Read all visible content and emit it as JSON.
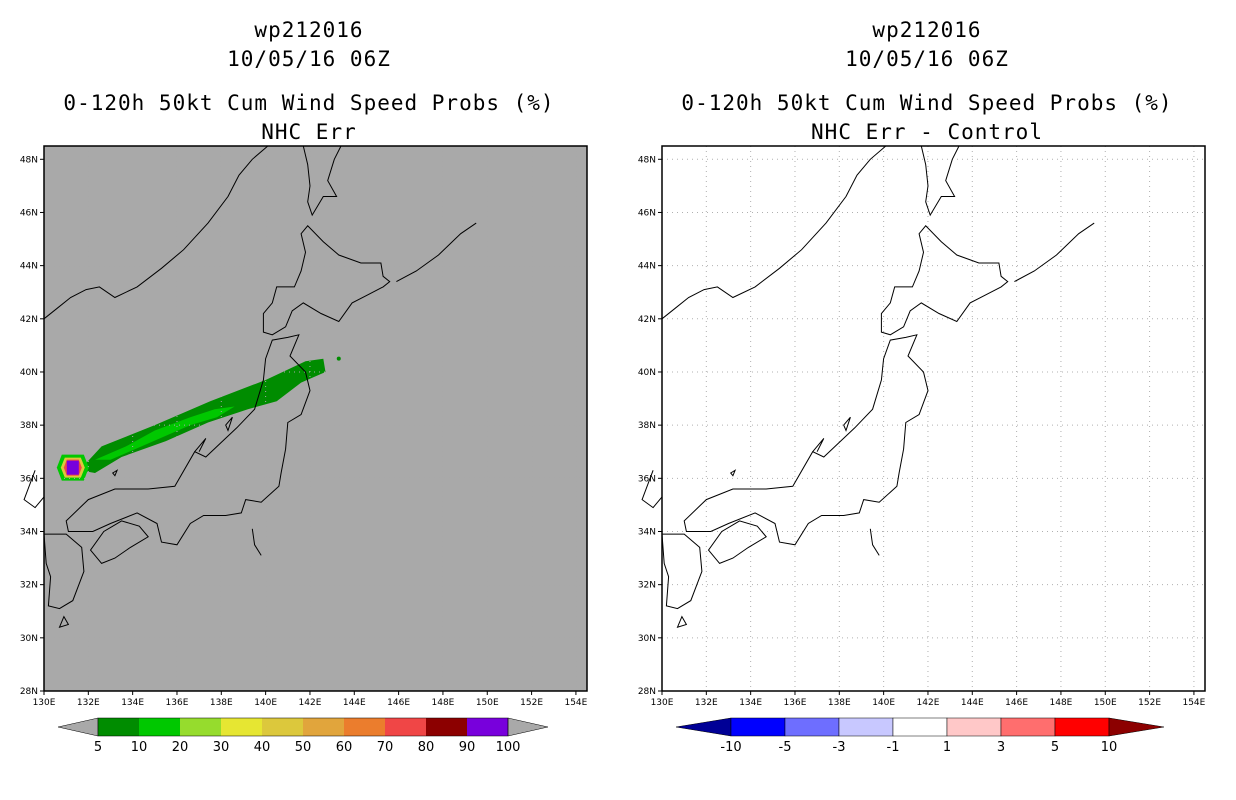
{
  "left_panel": {
    "storm_id": "wp212016",
    "datetime": "10/05/16 06Z",
    "title": "0-120h 50kt Cum Wind Speed Probs (%)",
    "subtitle": "NHC Err",
    "background_color": "#a9a9a9",
    "colorbar": {
      "labels": [
        "5",
        "10",
        "20",
        "30",
        "40",
        "50",
        "60",
        "70",
        "80",
        "90",
        "100"
      ],
      "colors": [
        "#008c00",
        "#00c800",
        "#96dc2d",
        "#e6e632",
        "#dcc83c",
        "#e1a53c",
        "#eb7d2d",
        "#f04646",
        "#8c0000",
        "#7800dc"
      ]
    }
  },
  "right_panel": {
    "storm_id": "wp212016",
    "datetime": "10/05/16 06Z",
    "title": "0-120h 50kt Cum Wind Speed Probs (%)",
    "subtitle": "NHC Err - Control",
    "background_color": "#ffffff",
    "colorbar": {
      "labels": [
        "-10",
        "-5",
        "-3",
        "-1",
        "1",
        "3",
        "5",
        "10"
      ],
      "colors": [
        "#000096",
        "#0000ff",
        "#6e6eff",
        "#c8c8ff",
        "#ffffff",
        "#ffc8c8",
        "#ff6e6e",
        "#ff0000",
        "#8c0000"
      ]
    }
  },
  "map": {
    "lat_labels": [
      "48N",
      "46N",
      "44N",
      "42N",
      "40N",
      "38N",
      "36N",
      "34N",
      "32N",
      "30N",
      "28N"
    ],
    "lon_labels": [
      "130E",
      "132E",
      "134E",
      "136E",
      "138E",
      "140E",
      "142E",
      "144E",
      "146E",
      "148E",
      "150E",
      "152E",
      "154E"
    ],
    "lat_range": [
      28,
      48.5
    ],
    "lon_range": [
      130,
      154.5
    ]
  },
  "probability_swath": {
    "color_levels": {
      "p5": "#008c00",
      "p10": "#00c800",
      "p50": "#dcc83c",
      "p70": "#f04646",
      "p100": "#7800dc"
    },
    "center_track_lonlat": [
      [
        131.3,
        36.4
      ],
      [
        133,
        37.0
      ],
      [
        136,
        38.0
      ],
      [
        139,
        39.0
      ],
      [
        142.2,
        40.2
      ]
    ]
  }
}
